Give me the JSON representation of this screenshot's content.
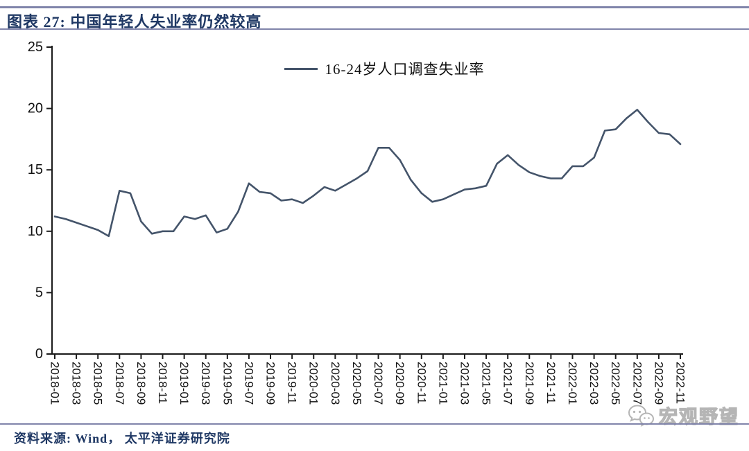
{
  "header": {
    "title": "图表 27:  中国年轻人失业率仍然较高"
  },
  "footer": {
    "source": "资料来源:  Wind， 太平洋证券研究院",
    "watermark": "宏观野望"
  },
  "colors": {
    "title_navy": "#1F3864",
    "rule": "#8084AA",
    "series_line": "#44546A",
    "axis": "#1a1a1a",
    "tick_label": "#111111",
    "watermark_gray": "#b5b5b5"
  },
  "icons": {
    "watermark_icon": "wechat-bubbles-icon"
  },
  "chart_data": {
    "type": "line",
    "title": "",
    "xlabel": "",
    "ylabel": "",
    "ylim": [
      0,
      25
    ],
    "yticks": [
      0,
      5,
      10,
      15,
      20,
      25
    ],
    "xtick_every": 2,
    "xtick_rotation_deg": 90,
    "grid": false,
    "legend_position": "top-center",
    "x": [
      "2018-01",
      "2018-02",
      "2018-03",
      "2018-04",
      "2018-05",
      "2018-06",
      "2018-07",
      "2018-08",
      "2018-09",
      "2018-10",
      "2018-11",
      "2018-12",
      "2019-01",
      "2019-02",
      "2019-03",
      "2019-04",
      "2019-05",
      "2019-06",
      "2019-07",
      "2019-08",
      "2019-09",
      "2019-10",
      "2019-11",
      "2019-12",
      "2020-01",
      "2020-02",
      "2020-03",
      "2020-04",
      "2020-05",
      "2020-06",
      "2020-07",
      "2020-08",
      "2020-09",
      "2020-10",
      "2020-11",
      "2020-12",
      "2021-01",
      "2021-02",
      "2021-03",
      "2021-04",
      "2021-05",
      "2021-06",
      "2021-07",
      "2021-08",
      "2021-09",
      "2021-10",
      "2021-11",
      "2021-12",
      "2022-01",
      "2022-02",
      "2022-03",
      "2022-04",
      "2022-05",
      "2022-06",
      "2022-07",
      "2022-08",
      "2022-09",
      "2022-10",
      "2022-11"
    ],
    "series": [
      {
        "name": "16-24岁人口调查失业率",
        "color": "#44546A",
        "values": [
          11.2,
          11.0,
          10.7,
          10.4,
          10.1,
          9.6,
          13.3,
          13.1,
          10.8,
          9.8,
          10.0,
          10.0,
          11.2,
          11.0,
          11.3,
          9.9,
          10.2,
          11.6,
          13.9,
          13.2,
          13.1,
          12.5,
          12.6,
          12.3,
          12.9,
          13.6,
          13.3,
          13.8,
          14.3,
          14.9,
          16.8,
          16.8,
          15.8,
          14.2,
          13.1,
          12.4,
          12.6,
          13.0,
          13.4,
          13.5,
          13.7,
          15.5,
          16.2,
          15.4,
          14.8,
          14.5,
          14.3,
          14.3,
          15.3,
          15.3,
          16.0,
          18.2,
          18.3,
          19.2,
          19.9,
          18.9,
          18.0,
          17.9,
          17.1
        ]
      }
    ]
  }
}
